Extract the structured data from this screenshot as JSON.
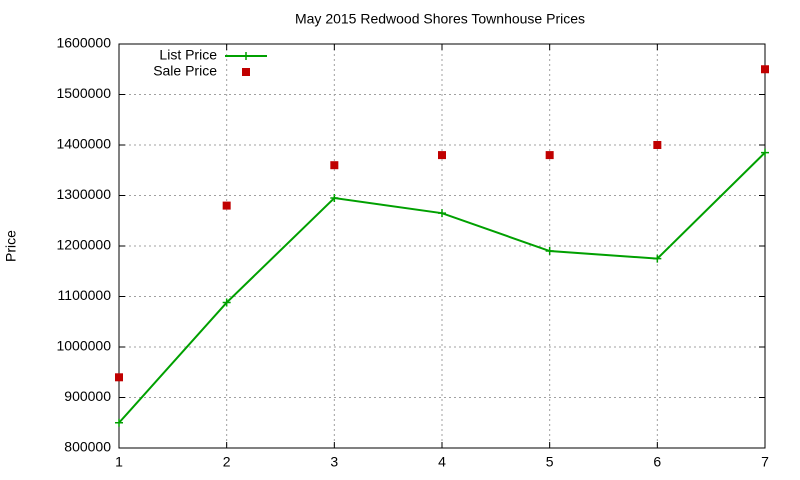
{
  "chart_data": {
    "type": "line",
    "title": "May 2015 Redwood Shores Townhouse Prices",
    "y_label": "Price",
    "x": [
      1,
      2,
      3,
      4,
      5,
      6,
      7
    ],
    "series": [
      {
        "name": "List Price",
        "color": "#00a000",
        "style": "linespoints",
        "marker": "plus",
        "values": [
          850000,
          1088000,
          1295000,
          1265000,
          1190000,
          1175000,
          1385000
        ]
      },
      {
        "name": "Sale Price",
        "color": "#c00000",
        "style": "points",
        "marker": "square",
        "values": [
          940000,
          1280000,
          1360000,
          1380000,
          1380000,
          1400000,
          1550000
        ]
      }
    ],
    "xlim": [
      1,
      7
    ],
    "xticks": [
      1,
      2,
      3,
      4,
      5,
      6,
      7
    ],
    "ylim": [
      800000,
      1600000
    ],
    "yticks": [
      800000,
      900000,
      1000000,
      1100000,
      1200000,
      1300000,
      1400000,
      1500000,
      1600000
    ],
    "grid": true,
    "legend": "top-left"
  }
}
